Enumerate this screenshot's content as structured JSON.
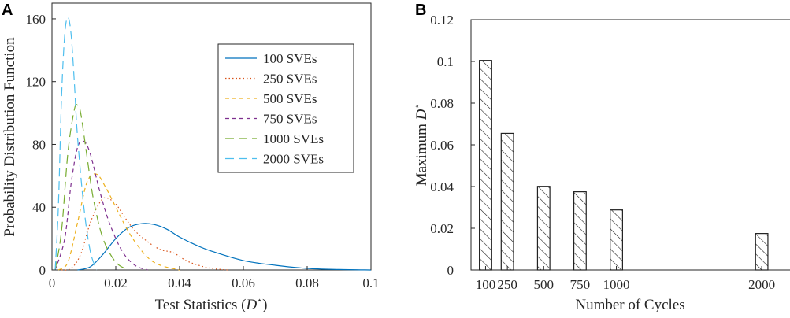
{
  "panels": {
    "a": {
      "letter": "A"
    },
    "b": {
      "letter": "B"
    }
  },
  "chart_data": [
    {
      "type": "line",
      "panel": "A",
      "xlabel_prefix": "Test Statistics (",
      "xlabel_symbol": "D",
      "xlabel_suffix": ")",
      "ylabel": "Probability Distribution Function",
      "xlim": [
        0,
        0.1
      ],
      "ylim": [
        0,
        170
      ],
      "xticks": [
        0,
        0.02,
        0.04,
        0.06,
        0.08,
        0.1
      ],
      "xtick_labels": [
        "0",
        "0.02",
        "0.04",
        "0.06",
        "0.08",
        "0.1"
      ],
      "yticks": [
        0,
        40,
        80,
        120,
        160
      ],
      "ytick_labels": [
        "0",
        "40",
        "80",
        "120",
        "160"
      ],
      "legend_position": "top-right",
      "series": [
        {
          "name": "100 SVEs",
          "color": "#0072BD",
          "dash": "solid",
          "x": [
            0.008,
            0.012,
            0.016,
            0.02,
            0.024,
            0.028,
            0.032,
            0.036,
            0.04,
            0.045,
            0.05,
            0.06,
            0.07,
            0.08,
            0.09,
            0.1
          ],
          "y": [
            0,
            2,
            10,
            20,
            27,
            29.5,
            29,
            26,
            21,
            16,
            12,
            6,
            3,
            1,
            0.3,
            0
          ]
        },
        {
          "name": "250 SVEs",
          "color": "#D95319",
          "dash": "dot",
          "x": [
            0.003,
            0.006,
            0.009,
            0.012,
            0.015,
            0.017,
            0.02,
            0.023,
            0.026,
            0.03,
            0.034,
            0.038,
            0.042,
            0.046,
            0.05,
            0.055
          ],
          "y": [
            0,
            1,
            10,
            30,
            43,
            46,
            42,
            33,
            25,
            18,
            13,
            11,
            6,
            3,
            1,
            0
          ]
        },
        {
          "name": "500 SVEs",
          "color": "#EDB120",
          "dash": "dash",
          "x": [
            0.002,
            0.005,
            0.008,
            0.011,
            0.014,
            0.017,
            0.02,
            0.023,
            0.026,
            0.03,
            0.034,
            0.04
          ],
          "y": [
            0,
            5,
            30,
            56,
            61,
            52,
            40,
            28,
            18,
            8,
            3,
            0
          ]
        },
        {
          "name": "750 SVEs",
          "color": "#7E2F8E",
          "dash": "dash",
          "x": [
            0.001,
            0.004,
            0.006,
            0.008,
            0.01,
            0.012,
            0.015,
            0.018,
            0.022,
            0.026,
            0.03
          ],
          "y": [
            0,
            20,
            55,
            78,
            82,
            74,
            50,
            30,
            12,
            3,
            0
          ]
        },
        {
          "name": "1000 SVEs",
          "color": "#77AC30",
          "dash": "longdash",
          "x": [
            0.001,
            0.003,
            0.005,
            0.007,
            0.008,
            0.009,
            0.011,
            0.013,
            0.016,
            0.02,
            0.024
          ],
          "y": [
            0,
            25,
            75,
            102,
            105,
            100,
            72,
            45,
            20,
            5,
            0
          ]
        },
        {
          "name": "2000 SVEs",
          "color": "#4DBEEE",
          "dash": "longdash",
          "x": [
            0.001,
            0.002,
            0.003,
            0.004,
            0.005,
            0.006,
            0.007,
            0.008,
            0.01,
            0.012,
            0.014
          ],
          "y": [
            0,
            40,
            110,
            150,
            161,
            150,
            120,
            85,
            40,
            12,
            0
          ]
        }
      ]
    },
    {
      "type": "bar",
      "panel": "B",
      "xlabel": "Number of Cycles",
      "ylabel_prefix": "Maximum ",
      "ylabel_symbol": "D",
      "ylim": [
        0,
        0.12
      ],
      "yticks": [
        0,
        0.02,
        0.04,
        0.06,
        0.08,
        0.1,
        0.12
      ],
      "ytick_labels": [
        "0",
        "0.02",
        "0.04",
        "0.06",
        "0.08",
        "0.1",
        "0.12"
      ],
      "xlim": [
        0,
        2200
      ],
      "bar_width": 85,
      "categories": [
        "100",
        "250",
        "500",
        "750",
        "1000",
        "2000"
      ],
      "x": [
        100,
        250,
        500,
        750,
        1000,
        2000
      ],
      "values": [
        0.1005,
        0.0655,
        0.0401,
        0.0375,
        0.0288,
        0.0175
      ],
      "hatch": "diagonal"
    }
  ]
}
